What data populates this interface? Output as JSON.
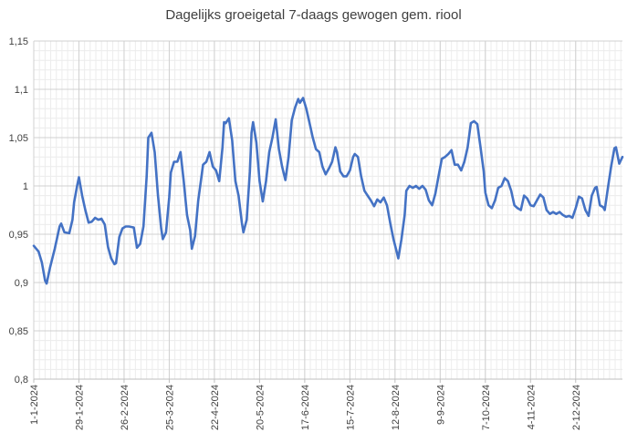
{
  "chart_data": {
    "type": "line",
    "title": "Dagelijks groeigetal 7-daags gewogen gem. riool",
    "xlabel": "",
    "ylabel": "",
    "ylim": [
      0.8,
      1.15
    ],
    "yticks": [
      "0,8",
      "0,85",
      "0,9",
      "0,95",
      "1",
      "1,05",
      "1,1",
      "1,15"
    ],
    "xticks": [
      "1-1-2024",
      "29-1-2024",
      "26-2-2024",
      "25-3-2024",
      "22-4-2024",
      "20-5-2024",
      "17-6-2024",
      "15-7-2024",
      "12-8-2024",
      "9-9-2024",
      "7-10-2024",
      "4-11-2024",
      "2-12-2024"
    ],
    "grid": true,
    "legend": "none",
    "series_color": "#4472C4",
    "series": [
      {
        "values": [
          [
            0,
            0.938
          ],
          [
            3,
            0.932
          ],
          [
            5,
            0.921
          ],
          [
            7,
            0.902
          ],
          [
            8,
            0.899
          ],
          [
            10,
            0.915
          ],
          [
            13,
            0.935
          ],
          [
            16,
            0.958
          ],
          [
            17,
            0.961
          ],
          [
            19,
            0.952
          ],
          [
            22,
            0.951
          ],
          [
            24,
            0.965
          ],
          [
            25,
            0.983
          ],
          [
            27,
            1.001
          ],
          [
            28,
            1.009
          ],
          [
            30,
            0.99
          ],
          [
            32,
            0.975
          ],
          [
            34,
            0.962
          ],
          [
            36,
            0.963
          ],
          [
            38,
            0.967
          ],
          [
            40,
            0.965
          ],
          [
            42,
            0.966
          ],
          [
            44,
            0.96
          ],
          [
            46,
            0.937
          ],
          [
            48,
            0.925
          ],
          [
            50,
            0.919
          ],
          [
            51,
            0.92
          ],
          [
            53,
            0.947
          ],
          [
            55,
            0.956
          ],
          [
            57,
            0.958
          ],
          [
            59,
            0.958
          ],
          [
            62,
            0.957
          ],
          [
            64,
            0.936
          ],
          [
            66,
            0.94
          ],
          [
            68,
            0.958
          ],
          [
            70,
            1.01
          ],
          [
            71,
            1.05
          ],
          [
            73,
            1.055
          ],
          [
            75,
            1.035
          ],
          [
            77,
            0.99
          ],
          [
            79,
            0.956
          ],
          [
            80,
            0.945
          ],
          [
            82,
            0.952
          ],
          [
            84,
            0.988
          ],
          [
            85,
            1.014
          ],
          [
            87,
            1.025
          ],
          [
            89,
            1.025
          ],
          [
            91,
            1.035
          ],
          [
            93,
            1.005
          ],
          [
            95,
            0.97
          ],
          [
            97,
            0.954
          ],
          [
            98,
            0.935
          ],
          [
            100,
            0.948
          ],
          [
            102,
            0.985
          ],
          [
            104,
            1.01
          ],
          [
            105,
            1.022
          ],
          [
            107,
            1.025
          ],
          [
            109,
            1.035
          ],
          [
            111,
            1.02
          ],
          [
            113,
            1.016
          ],
          [
            115,
            1.005
          ],
          [
            117,
            1.04
          ],
          [
            118,
            1.066
          ],
          [
            119,
            1.065
          ],
          [
            121,
            1.07
          ],
          [
            123,
            1.047
          ],
          [
            125,
            1.005
          ],
          [
            127,
            0.99
          ],
          [
            129,
            0.962
          ],
          [
            130,
            0.952
          ],
          [
            132,
            0.965
          ],
          [
            134,
            1.015
          ],
          [
            135,
            1.055
          ],
          [
            136,
            1.066
          ],
          [
            138,
            1.045
          ],
          [
            140,
            1.005
          ],
          [
            142,
            0.984
          ],
          [
            144,
            1.005
          ],
          [
            146,
            1.035
          ],
          [
            148,
            1.05
          ],
          [
            150,
            1.069
          ],
          [
            152,
            1.038
          ],
          [
            154,
            1.02
          ],
          [
            156,
            1.006
          ],
          [
            158,
            1.03
          ],
          [
            160,
            1.068
          ],
          [
            162,
            1.081
          ],
          [
            164,
            1.09
          ],
          [
            165,
            1.086
          ],
          [
            167,
            1.091
          ],
          [
            169,
            1.08
          ],
          [
            171,
            1.065
          ],
          [
            173,
            1.05
          ],
          [
            175,
            1.038
          ],
          [
            177,
            1.035
          ],
          [
            179,
            1.02
          ],
          [
            181,
            1.012
          ],
          [
            183,
            1.018
          ],
          [
            185,
            1.025
          ],
          [
            187,
            1.04
          ],
          [
            188,
            1.035
          ],
          [
            190,
            1.015
          ],
          [
            192,
            1.01
          ],
          [
            194,
            1.01
          ],
          [
            196,
            1.016
          ],
          [
            198,
            1.03
          ],
          [
            199,
            1.033
          ],
          [
            201,
            1.03
          ],
          [
            203,
            1.01
          ],
          [
            205,
            0.995
          ],
          [
            207,
            0.99
          ],
          [
            209,
            0.985
          ],
          [
            211,
            0.979
          ],
          [
            213,
            0.986
          ],
          [
            215,
            0.983
          ],
          [
            217,
            0.988
          ],
          [
            219,
            0.98
          ],
          [
            221,
            0.962
          ],
          [
            223,
            0.945
          ],
          [
            225,
            0.932
          ],
          [
            226,
            0.925
          ],
          [
            228,
            0.945
          ],
          [
            230,
            0.97
          ],
          [
            231,
            0.995
          ],
          [
            233,
            1.0
          ],
          [
            235,
            0.998
          ],
          [
            237,
            1.0
          ],
          [
            239,
            0.997
          ],
          [
            241,
            1.0
          ],
          [
            243,
            0.996
          ],
          [
            245,
            0.985
          ],
          [
            247,
            0.98
          ],
          [
            249,
            0.992
          ],
          [
            251,
            1.01
          ],
          [
            253,
            1.028
          ],
          [
            255,
            1.03
          ],
          [
            257,
            1.033
          ],
          [
            259,
            1.037
          ],
          [
            261,
            1.022
          ],
          [
            263,
            1.022
          ],
          [
            265,
            1.016
          ],
          [
            267,
            1.025
          ],
          [
            269,
            1.04
          ],
          [
            271,
            1.065
          ],
          [
            273,
            1.067
          ],
          [
            275,
            1.064
          ],
          [
            277,
            1.04
          ],
          [
            279,
            1.015
          ],
          [
            280,
            0.993
          ],
          [
            282,
            0.98
          ],
          [
            284,
            0.977
          ],
          [
            286,
            0.985
          ],
          [
            288,
            0.998
          ],
          [
            290,
            1.0
          ],
          [
            292,
            1.008
          ],
          [
            294,
            1.005
          ],
          [
            296,
            0.995
          ],
          [
            298,
            0.98
          ],
          [
            300,
            0.977
          ],
          [
            302,
            0.975
          ],
          [
            304,
            0.99
          ],
          [
            306,
            0.987
          ],
          [
            308,
            0.98
          ],
          [
            310,
            0.979
          ],
          [
            312,
            0.985
          ],
          [
            314,
            0.991
          ],
          [
            316,
            0.988
          ],
          [
            318,
            0.975
          ],
          [
            320,
            0.971
          ],
          [
            322,
            0.973
          ],
          [
            324,
            0.971
          ],
          [
            326,
            0.973
          ],
          [
            328,
            0.97
          ],
          [
            330,
            0.968
          ],
          [
            332,
            0.969
          ],
          [
            334,
            0.967
          ],
          [
            336,
            0.977
          ],
          [
            338,
            0.989
          ],
          [
            340,
            0.987
          ],
          [
            342,
            0.975
          ],
          [
            344,
            0.969
          ],
          [
            346,
            0.99
          ],
          [
            348,
            0.998
          ],
          [
            349,
            0.999
          ],
          [
            351,
            0.98
          ],
          [
            353,
            0.978
          ],
          [
            354,
            0.975
          ],
          [
            356,
            0.998
          ],
          [
            358,
            1.02
          ],
          [
            360,
            1.039
          ],
          [
            361,
            1.04
          ],
          [
            363,
            1.023
          ],
          [
            365,
            1.03
          ]
        ]
      }
    ]
  }
}
